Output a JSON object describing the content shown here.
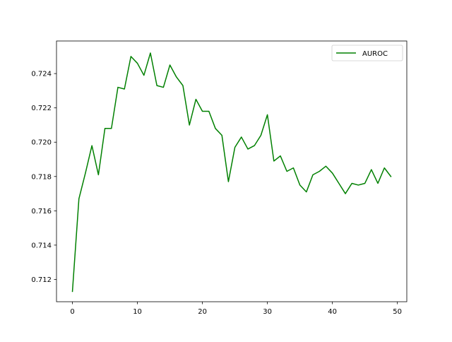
{
  "chart_data": {
    "type": "line",
    "title": "",
    "xlabel": "",
    "ylabel": "",
    "xlim": [
      -2.45,
      51.45
    ],
    "ylim": [
      0.7107,
      0.7259
    ],
    "x_ticks": [
      0,
      10,
      20,
      30,
      40,
      50
    ],
    "y_ticks": [
      0.712,
      0.714,
      0.716,
      0.718,
      0.72,
      0.722,
      0.724
    ],
    "y_tick_labels": [
      "0.712",
      "0.714",
      "0.716",
      "0.718",
      "0.720",
      "0.722",
      "0.724"
    ],
    "grid": false,
    "legend_position": "upper right",
    "series": [
      {
        "name": "AUROC",
        "color": "#008000",
        "x": [
          0,
          1,
          2,
          3,
          4,
          5,
          6,
          7,
          8,
          9,
          10,
          11,
          12,
          13,
          14,
          15,
          16,
          17,
          18,
          19,
          20,
          21,
          22,
          23,
          24,
          25,
          26,
          27,
          28,
          29,
          30,
          31,
          32,
          33,
          34,
          35,
          36,
          37,
          38,
          39,
          40,
          41,
          42,
          43,
          44,
          45,
          46,
          47,
          48,
          49
        ],
        "y": [
          0.7113,
          0.7167,
          0.7182,
          0.7198,
          0.7181,
          0.7208,
          0.7208,
          0.7232,
          0.7231,
          0.725,
          0.7246,
          0.7239,
          0.7252,
          0.7233,
          0.7232,
          0.7245,
          0.7238,
          0.7233,
          0.721,
          0.7225,
          0.7218,
          0.7218,
          0.7208,
          0.7204,
          0.7177,
          0.7197,
          0.7203,
          0.7196,
          0.7198,
          0.7204,
          0.7216,
          0.7189,
          0.7192,
          0.7183,
          0.7185,
          0.7175,
          0.7171,
          0.7181,
          0.7183,
          0.7186,
          0.7182,
          0.7176,
          0.717,
          0.7176,
          0.7175,
          0.7176,
          0.7184,
          0.7176,
          0.7185,
          0.718
        ]
      }
    ]
  }
}
